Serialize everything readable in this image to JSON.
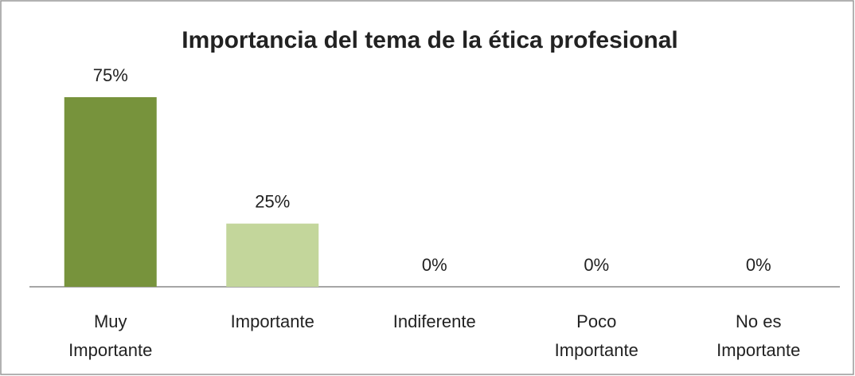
{
  "chart_data": {
    "type": "bar",
    "title": "Importancia del tema de la ética profesional",
    "categories": [
      "Muy Importante",
      "Importante",
      "Indiferente",
      "Poco Importante",
      "No es Importante"
    ],
    "values": [
      75,
      25,
      0,
      0,
      0
    ],
    "value_labels": [
      "75%",
      "25%",
      "0%",
      "0%",
      "0%"
    ],
    "colors": [
      "#77933c",
      "#c3d69b",
      "#c3d69b",
      "#c3d69b",
      "#c3d69b"
    ]
  }
}
